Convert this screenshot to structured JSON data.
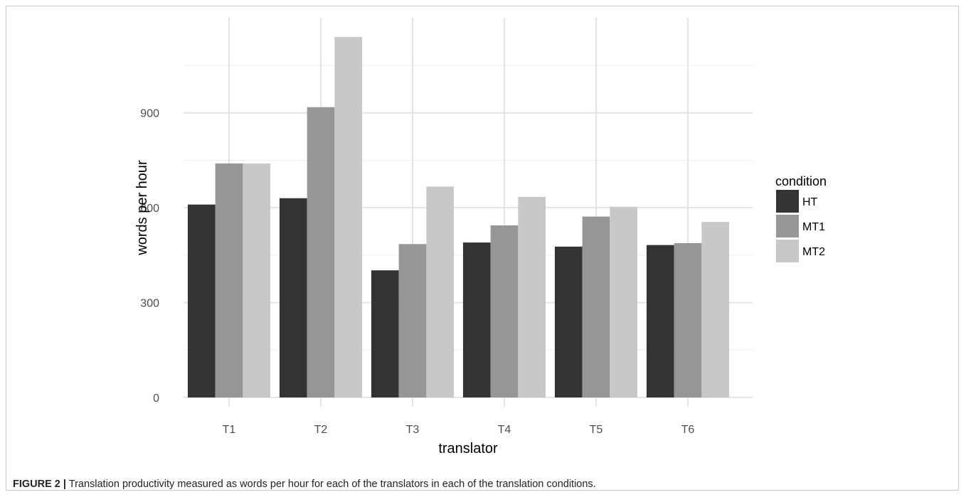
{
  "chart_data": {
    "type": "bar",
    "categories": [
      "T1",
      "T2",
      "T3",
      "T4",
      "T5",
      "T6"
    ],
    "series": [
      {
        "name": "HT",
        "values": [
          610,
          630,
          402,
          490,
          477,
          482
        ],
        "color": "#333333"
      },
      {
        "name": "MT1",
        "values": [
          740,
          918,
          485,
          544,
          572,
          488
        ],
        "color": "#969696"
      },
      {
        "name": "MT2",
        "values": [
          740,
          1140,
          667,
          634,
          603,
          555
        ],
        "color": "#c8c8c8"
      }
    ],
    "xlabel": "translator",
    "ylabel": "words per hour",
    "ylim": [
      0,
      1200
    ],
    "y_ticks": [
      0,
      300,
      600,
      900
    ],
    "grid": true,
    "legend": {
      "title": "condition",
      "position": "right"
    }
  },
  "caption": {
    "label": "FIGURE 2 |",
    "text": "Translation productivity measured as words per hour for each of the translators in each of the translation conditions."
  }
}
